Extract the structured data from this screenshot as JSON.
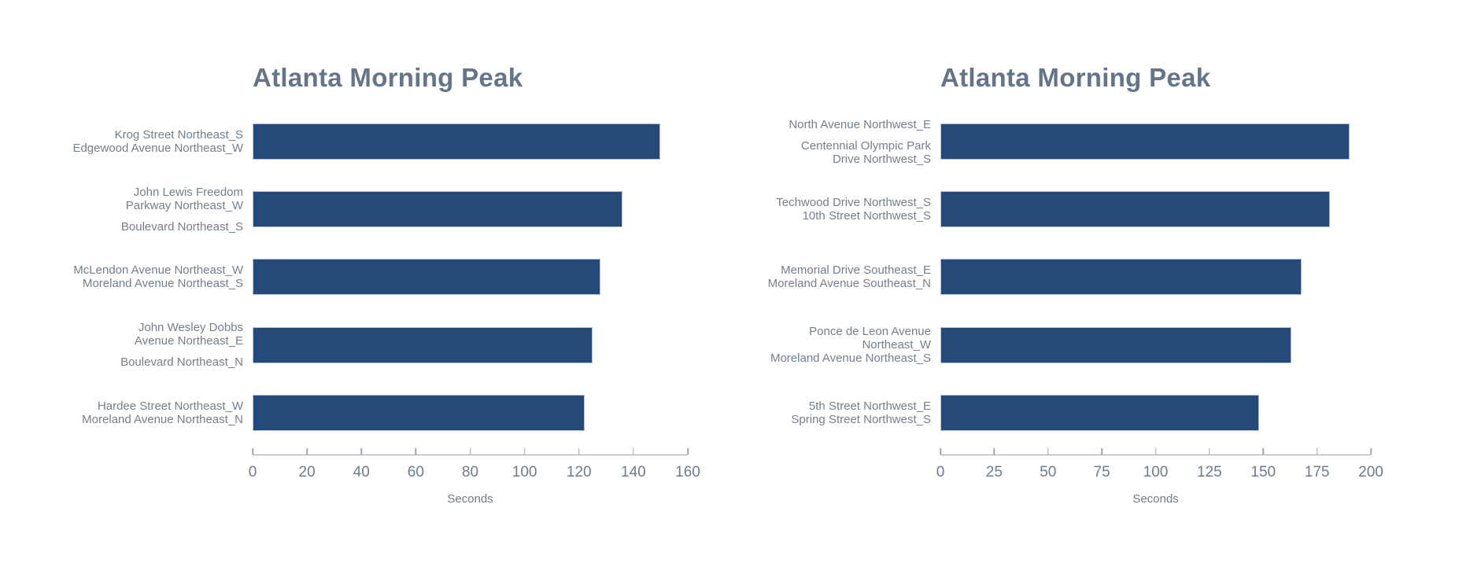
{
  "page": {
    "background": "#ffffff"
  },
  "colors": {
    "bar_fill": "#254a7a",
    "bar_border": "#b4c3da",
    "title_text": "#64758a",
    "category_text": "#747f8c",
    "tick_text": "#6e7b8a",
    "axis_line": "#9aa5b1"
  },
  "chart_data": [
    {
      "type": "bar",
      "orientation": "horizontal",
      "title": "Atlanta Morning Peak",
      "xlabel": "Seconds",
      "xlim": [
        0,
        160
      ],
      "xticks": [
        0,
        20,
        40,
        60,
        80,
        100,
        120,
        140,
        160
      ],
      "grid": false,
      "legend": false,
      "categories": [
        [
          "Krog Street Northeast_S",
          "Edgewood Avenue Northeast_W"
        ],
        [
          "John Lewis Freedom\nParkway Northeast_W",
          "Boulevard Northeast_S"
        ],
        [
          "McLendon Avenue Northeast_W",
          "Moreland Avenue Northeast_S"
        ],
        [
          "John Wesley Dobbs\nAvenue Northeast_E",
          "Boulevard Northeast_N"
        ],
        [
          "Hardee Street Northeast_W",
          "Moreland Avenue Northeast_N"
        ]
      ],
      "values": [
        150,
        136,
        128,
        125,
        122
      ]
    },
    {
      "type": "bar",
      "orientation": "horizontal",
      "title": "Atlanta Morning Peak",
      "xlabel": "Seconds",
      "xlim": [
        0,
        200
      ],
      "xticks": [
        0,
        25,
        50,
        75,
        100,
        125,
        150,
        175,
        200
      ],
      "grid": false,
      "legend": false,
      "categories": [
        [
          "North Avenue Northwest_E",
          "Centennial Olympic Park\nDrive Northwest_S"
        ],
        [
          "Techwood Drive Northwest_S",
          "10th Street Northwest_S"
        ],
        [
          "Memorial Drive Southeast_E",
          "Moreland Avenue Southeast_N"
        ],
        [
          "Ponce de Leon Avenue Northeast_W",
          "Moreland Avenue Northeast_S"
        ],
        [
          "5th Street Northwest_E",
          "Spring Street Northwest_S"
        ]
      ],
      "values": [
        190,
        181,
        168,
        163,
        148
      ]
    }
  ]
}
